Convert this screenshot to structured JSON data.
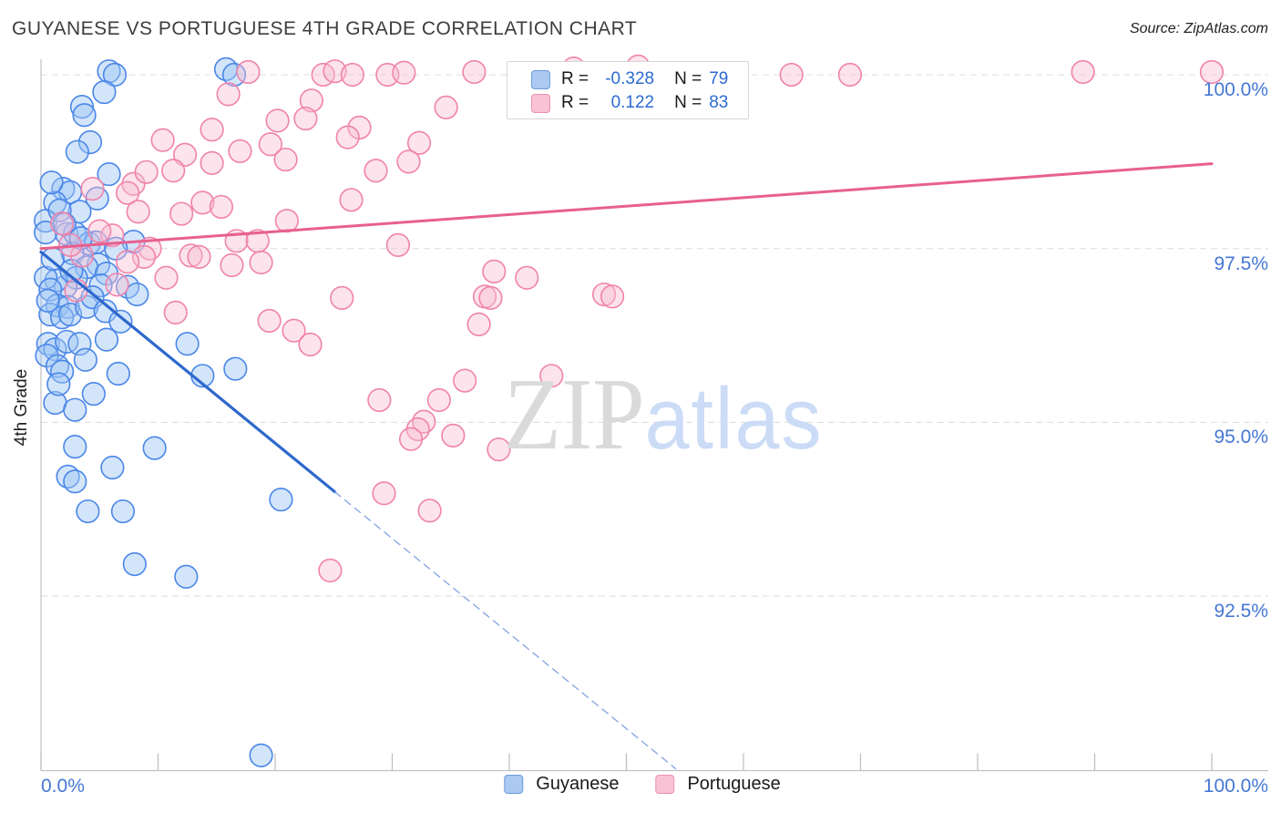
{
  "title": "GUYANESE VS PORTUGUESE 4TH GRADE CORRELATION CHART",
  "source": "Source: ZipAtlas.com",
  "watermark": {
    "zip": "ZIP",
    "atlas": "atlas"
  },
  "legend_box": {
    "rows": [
      {
        "r_label": "R =",
        "r_value": "-0.328",
        "n_label": "N =",
        "n_value": "79"
      },
      {
        "r_label": "R =",
        "r_value": "0.122",
        "n_label": "N =",
        "n_value": "83"
      }
    ]
  },
  "axes": {
    "y_label": "4th Grade",
    "x_min_label": "0.0%",
    "x_max_label": "100.0%"
  },
  "bottom_legend": [
    {
      "label": "Guyanese",
      "color": "blue"
    },
    {
      "label": "Portuguese",
      "color": "pink"
    }
  ],
  "chart_data": {
    "type": "scatter",
    "xlabel": "",
    "ylabel": "4th Grade",
    "x_range": [
      0,
      100
    ],
    "y_range": [
      90,
      100.3
    ],
    "grid": "dashed-horizontal",
    "y_gridlines": [
      {
        "value": 100.0,
        "label": "100.0%"
      },
      {
        "value": 97.5,
        "label": "97.5%"
      },
      {
        "value": 95.0,
        "label": "95.0%"
      },
      {
        "value": 92.5,
        "label": "92.5%"
      }
    ],
    "x_tick_values": [
      0,
      10,
      20,
      30,
      40,
      50,
      60,
      70,
      80,
      90,
      100
    ],
    "series": [
      {
        "name": "Guyanese",
        "R": -0.328,
        "N": 79,
        "stroke": "#4a86e8",
        "fill": "rgba(158,198,245,0.45)",
        "points": [
          [
            5.8,
            100.05
          ],
          [
            6.3,
            100.0
          ],
          [
            15.8,
            100.08
          ],
          [
            16.5,
            100.0
          ],
          [
            5.4,
            99.75
          ],
          [
            3.5,
            99.54
          ],
          [
            3.7,
            99.42
          ],
          [
            4.2,
            99.03
          ],
          [
            3.1,
            98.89
          ],
          [
            5.8,
            98.57
          ],
          [
            1.9,
            98.36
          ],
          [
            2.5,
            98.31
          ],
          [
            1.2,
            98.16
          ],
          [
            4.8,
            98.22
          ],
          [
            3.3,
            98.03
          ],
          [
            0.4,
            97.9
          ],
          [
            0.4,
            97.73
          ],
          [
            2.2,
            97.71
          ],
          [
            2.9,
            97.72
          ],
          [
            4.1,
            97.57
          ],
          [
            4.7,
            97.59
          ],
          [
            7.9,
            97.6
          ],
          [
            6.4,
            97.5
          ],
          [
            2.7,
            97.43
          ],
          [
            4.9,
            97.27
          ],
          [
            3.9,
            97.23
          ],
          [
            5.6,
            97.14
          ],
          [
            5.1,
            96.97
          ],
          [
            3.0,
            97.08
          ],
          [
            2.1,
            96.95
          ],
          [
            1.3,
            97.04
          ],
          [
            0.4,
            97.08
          ],
          [
            0.8,
            96.91
          ],
          [
            7.4,
            96.95
          ],
          [
            8.2,
            96.84
          ],
          [
            1.4,
            96.68
          ],
          [
            2.3,
            96.66
          ],
          [
            0.8,
            96.55
          ],
          [
            1.8,
            96.51
          ],
          [
            2.5,
            96.55
          ],
          [
            3.9,
            96.66
          ],
          [
            12.5,
            96.13
          ],
          [
            13.8,
            95.67
          ],
          [
            16.6,
            95.77
          ],
          [
            0.6,
            96.13
          ],
          [
            1.2,
            96.05
          ],
          [
            2.2,
            96.16
          ],
          [
            3.3,
            96.13
          ],
          [
            5.6,
            96.19
          ],
          [
            0.5,
            95.96
          ],
          [
            1.4,
            95.81
          ],
          [
            1.8,
            95.73
          ],
          [
            6.6,
            95.7
          ],
          [
            4.5,
            95.41
          ],
          [
            1.2,
            95.28
          ],
          [
            2.9,
            95.18
          ],
          [
            2.9,
            94.65
          ],
          [
            9.7,
            94.63
          ],
          [
            6.1,
            94.35
          ],
          [
            2.3,
            94.22
          ],
          [
            2.9,
            94.15
          ],
          [
            4.0,
            93.72
          ],
          [
            7.0,
            93.72
          ],
          [
            20.5,
            93.89
          ],
          [
            8.0,
            92.96
          ],
          [
            12.4,
            92.78
          ],
          [
            18.8,
            90.21
          ],
          [
            0.9,
            98.45
          ],
          [
            1.6,
            98.05
          ],
          [
            2.0,
            97.85
          ],
          [
            3.4,
            97.65
          ],
          [
            1.0,
            97.35
          ],
          [
            2.6,
            97.18
          ],
          [
            4.4,
            96.8
          ],
          [
            5.5,
            96.6
          ],
          [
            0.6,
            96.75
          ],
          [
            1.5,
            95.55
          ],
          [
            3.8,
            95.9
          ],
          [
            6.8,
            96.45
          ]
        ]
      },
      {
        "name": "Portuguese",
        "R": 0.122,
        "N": 83,
        "stroke": "#f083ab",
        "fill": "rgba(248,188,210,0.42)",
        "points": [
          [
            17.7,
            100.04
          ],
          [
            24.1,
            100.0
          ],
          [
            25.1,
            100.05
          ],
          [
            26.6,
            100.0
          ],
          [
            29.6,
            100.0
          ],
          [
            31.0,
            100.03
          ],
          [
            37.0,
            100.04
          ],
          [
            45.5,
            100.09
          ],
          [
            51.0,
            100.12
          ],
          [
            64.1,
            100.0
          ],
          [
            69.1,
            100.0
          ],
          [
            89.0,
            100.04
          ],
          [
            100.0,
            100.04
          ],
          [
            16.0,
            99.72
          ],
          [
            23.1,
            99.63
          ],
          [
            20.2,
            99.34
          ],
          [
            22.6,
            99.37
          ],
          [
            19.6,
            99.0
          ],
          [
            14.6,
            99.21
          ],
          [
            14.6,
            98.73
          ],
          [
            10.4,
            99.06
          ],
          [
            12.3,
            98.85
          ],
          [
            11.3,
            98.62
          ],
          [
            20.9,
            98.78
          ],
          [
            34.6,
            99.53
          ],
          [
            27.2,
            99.24
          ],
          [
            26.2,
            99.1
          ],
          [
            32.3,
            99.02
          ],
          [
            31.4,
            98.75
          ],
          [
            28.6,
            98.62
          ],
          [
            7.9,
            98.43
          ],
          [
            7.4,
            98.3
          ],
          [
            8.3,
            98.03
          ],
          [
            4.4,
            98.36
          ],
          [
            13.8,
            98.16
          ],
          [
            15.4,
            98.1
          ],
          [
            6.1,
            97.69
          ],
          [
            9.3,
            97.5
          ],
          [
            8.8,
            97.38
          ],
          [
            7.4,
            97.31
          ],
          [
            3.5,
            97.4
          ],
          [
            1.8,
            97.86
          ],
          [
            16.7,
            97.61
          ],
          [
            18.5,
            97.61
          ],
          [
            16.3,
            97.26
          ],
          [
            18.8,
            97.3
          ],
          [
            12.8,
            97.4
          ],
          [
            13.5,
            97.38
          ],
          [
            6.5,
            96.98
          ],
          [
            10.7,
            97.08
          ],
          [
            11.5,
            96.58
          ],
          [
            19.5,
            96.46
          ],
          [
            21.6,
            96.32
          ],
          [
            23.0,
            96.12
          ],
          [
            25.7,
            96.79
          ],
          [
            37.9,
            96.81
          ],
          [
            38.4,
            96.79
          ],
          [
            38.7,
            97.17
          ],
          [
            41.5,
            97.08
          ],
          [
            48.1,
            96.84
          ],
          [
            48.8,
            96.81
          ],
          [
            37.4,
            96.41
          ],
          [
            36.2,
            95.6
          ],
          [
            43.6,
            95.67
          ],
          [
            28.9,
            95.32
          ],
          [
            34.0,
            95.32
          ],
          [
            32.7,
            95.01
          ],
          [
            32.2,
            94.9
          ],
          [
            31.6,
            94.76
          ],
          [
            35.2,
            94.81
          ],
          [
            39.1,
            94.61
          ],
          [
            29.3,
            93.98
          ],
          [
            33.2,
            93.73
          ],
          [
            24.7,
            92.87
          ],
          [
            2.5,
            97.55
          ],
          [
            5.0,
            97.75
          ],
          [
            9.0,
            98.6
          ],
          [
            12.0,
            98.0
          ],
          [
            3.0,
            96.9
          ],
          [
            17.0,
            98.9
          ],
          [
            26.5,
            98.2
          ],
          [
            30.5,
            97.55
          ],
          [
            21.0,
            97.9
          ]
        ]
      }
    ],
    "trend_lines": [
      {
        "series": "Guyanese",
        "style": "solid",
        "color": "#2d68cc",
        "width": 3.2,
        "from": [
          0,
          97.45
        ],
        "to": [
          25.1,
          94.0
        ]
      },
      {
        "series": "Guyanese",
        "style": "dashed",
        "color": "#89a9e3",
        "width": 1.4,
        "from": [
          25.1,
          94.0
        ],
        "to": [
          54.2,
          90.02
        ]
      },
      {
        "series": "Portuguese",
        "style": "solid",
        "color": "#e7608e",
        "width": 3.0,
        "from": [
          0,
          97.5
        ],
        "to": [
          100,
          98.72
        ]
      }
    ]
  }
}
